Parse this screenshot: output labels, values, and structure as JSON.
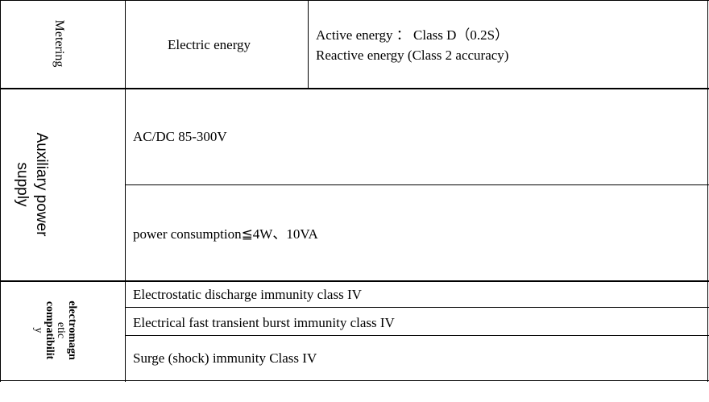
{
  "rows": {
    "metering": {
      "header": "Metering",
      "label": "Electric energy",
      "lines": [
        "Active energy  ： Class D（0.2S）",
        "Reactive energy (Class 2 accuracy)"
      ]
    },
    "aux": {
      "header_line1": "Auxiliary power",
      "header_line2": "supply",
      "items": [
        "AC/DC 85-300V",
        "power consumption≦4W、10VA"
      ]
    },
    "emc": {
      "header_lines": [
        "electromagn",
        "etic",
        "compatibilit",
        "y"
      ],
      "items": [
        "Electrostatic discharge immunity class IV",
        "Electrical fast transient burst immunity class IV",
        "Surge (shock) immunity Class IV"
      ]
    }
  }
}
